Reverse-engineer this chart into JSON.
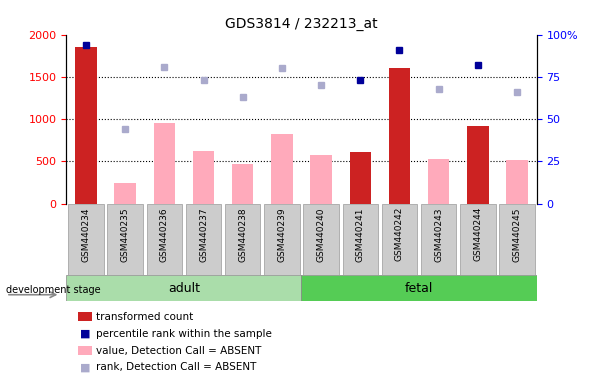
{
  "title": "GDS3814 / 232213_at",
  "samples": [
    "GSM440234",
    "GSM440235",
    "GSM440236",
    "GSM440237",
    "GSM440238",
    "GSM440239",
    "GSM440240",
    "GSM440241",
    "GSM440242",
    "GSM440243",
    "GSM440244",
    "GSM440245"
  ],
  "transformed_count": [
    1850,
    null,
    null,
    null,
    null,
    null,
    null,
    610,
    1600,
    null,
    920,
    null
  ],
  "absent_value": [
    null,
    240,
    950,
    620,
    470,
    820,
    570,
    null,
    null,
    530,
    null,
    510
  ],
  "percentile_rank": [
    94,
    null,
    null,
    null,
    null,
    null,
    null,
    73,
    91,
    null,
    82,
    null
  ],
  "absent_rank": [
    null,
    44,
    81,
    73,
    63,
    80,
    70,
    null,
    null,
    68,
    null,
    66
  ],
  "n_adult": 6,
  "n_fetal": 6,
  "ylim_left": [
    0,
    2000
  ],
  "ylim_right": [
    0,
    100
  ],
  "yticks_left": [
    0,
    500,
    1000,
    1500,
    2000
  ],
  "yticks_right": [
    0,
    25,
    50,
    75,
    100
  ],
  "bar_color_present": "#cc2222",
  "bar_color_absent": "#ffaabb",
  "dot_color_present": "#000099",
  "dot_color_absent": "#aaaacc",
  "adult_color": "#aaddaa",
  "fetal_color": "#55cc55",
  "ticklabel_bg": "#cccccc",
  "ticklabel_edge": "#999999"
}
